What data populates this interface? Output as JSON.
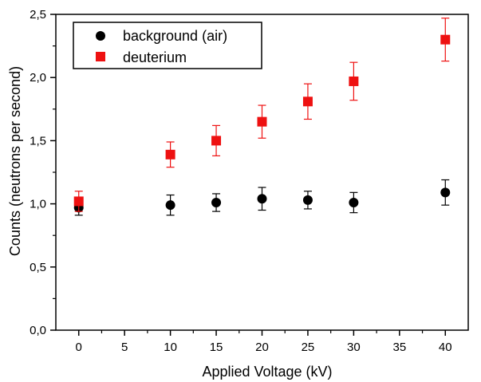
{
  "chart_data": {
    "type": "scatter",
    "xlabel": "Applied Voltage (kV)",
    "ylabel": "Counts (neutrons per second)",
    "xlim": [
      -2.5,
      42.5
    ],
    "ylim": [
      0,
      2.5
    ],
    "x_ticks": [
      "0",
      "5",
      "10",
      "15",
      "20",
      "25",
      "30",
      "35",
      "40"
    ],
    "y_ticks": [
      "0,0",
      "0,5",
      "1,0",
      "1,5",
      "2,0",
      "2,5"
    ],
    "x_tick_values": [
      0,
      5,
      10,
      15,
      20,
      25,
      30,
      35,
      40
    ],
    "y_tick_values": [
      0,
      0.5,
      1.0,
      1.5,
      2.0,
      2.5
    ],
    "grid": false,
    "legend_position": "top-left",
    "series": [
      {
        "name": "background (air)",
        "marker": "circle",
        "color": "#000000",
        "x": [
          0,
          10,
          15,
          20,
          25,
          30,
          40
        ],
        "y": [
          0.97,
          0.99,
          1.01,
          1.04,
          1.03,
          1.01,
          1.09
        ],
        "err": [
          0.06,
          0.08,
          0.07,
          0.09,
          0.07,
          0.08,
          0.1
        ]
      },
      {
        "name": "deuterium",
        "marker": "square",
        "color": "#ee1111",
        "x": [
          0,
          10,
          15,
          20,
          25,
          30,
          40
        ],
        "y": [
          1.02,
          1.39,
          1.5,
          1.65,
          1.81,
          1.97,
          2.3
        ],
        "err": [
          0.08,
          0.1,
          0.12,
          0.13,
          0.14,
          0.15,
          0.17
        ]
      }
    ]
  }
}
